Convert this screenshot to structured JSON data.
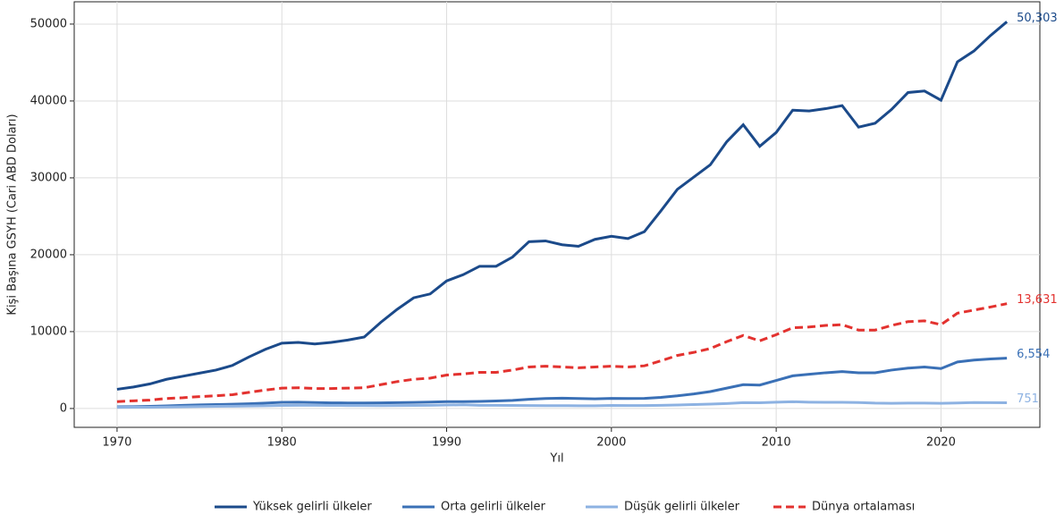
{
  "chart_data": {
    "type": "line",
    "xlabel": "Yıl",
    "ylabel": "Kişi Başına GSYH (Cari ABD Doları)",
    "x": [
      1970,
      1971,
      1972,
      1973,
      1974,
      1975,
      1976,
      1977,
      1978,
      1979,
      1980,
      1981,
      1982,
      1983,
      1984,
      1985,
      1986,
      1987,
      1988,
      1989,
      1990,
      1991,
      1992,
      1993,
      1994,
      1995,
      1996,
      1997,
      1998,
      1999,
      2000,
      2001,
      2002,
      2003,
      2004,
      2005,
      2006,
      2007,
      2008,
      2009,
      2010,
      2011,
      2012,
      2013,
      2014,
      2015,
      2016,
      2017,
      2018,
      2019,
      2020,
      2021,
      2022,
      2023,
      2024
    ],
    "xlim": [
      1967.4,
      2026.0
    ],
    "xticks": [
      1970,
      1980,
      1990,
      2000,
      2010,
      2020
    ],
    "ylim": [
      -2450,
      52900
    ],
    "yticks": [
      0,
      10000,
      20000,
      30000,
      40000,
      50000
    ],
    "grid": true,
    "legend": "bottom",
    "series": [
      {
        "name": "Yüksek gelirli ülkeler",
        "color": "#1b4a8a",
        "dash": false,
        "last_label": "50,303",
        "values": [
          2500,
          2800,
          3200,
          3800,
          4200,
          4600,
          5000,
          5600,
          6700,
          7700,
          8500,
          8600,
          8400,
          8600,
          8900,
          9300,
          11200,
          12900,
          14400,
          14900,
          16600,
          17400,
          18500,
          18500,
          19700,
          21700,
          21800,
          21300,
          21100,
          22000,
          22400,
          22100,
          23000,
          25700,
          28500,
          30100,
          31700,
          34700,
          36900,
          34100,
          35900,
          38800,
          38700,
          39000,
          39400,
          36600,
          37100,
          38900,
          41100,
          41300,
          40100,
          45100,
          46500,
          48500,
          50303
        ]
      },
      {
        "name": "Orta gelirli ülkeler",
        "color": "#3a70b6",
        "dash": false,
        "last_label": "6,554",
        "values": [
          220,
          240,
          280,
          340,
          420,
          470,
          520,
          560,
          620,
          700,
          800,
          820,
          780,
          740,
          720,
          720,
          730,
          760,
          790,
          830,
          900,
          900,
          920,
          980,
          1060,
          1200,
          1300,
          1350,
          1300,
          1250,
          1320,
          1300,
          1320,
          1450,
          1650,
          1900,
          2200,
          2650,
          3100,
          3050,
          3650,
          4250,
          4450,
          4650,
          4800,
          4650,
          4650,
          5000,
          5250,
          5400,
          5200,
          6050,
          6300,
          6450,
          6554
        ]
      },
      {
        "name": "Düşük gelirli ülkeler",
        "color": "#8db2e2",
        "dash": false,
        "last_label": "751",
        "values": [
          150,
          160,
          170,
          200,
          230,
          260,
          280,
          300,
          330,
          360,
          400,
          420,
          410,
          400,
          390,
          380,
          370,
          380,
          400,
          420,
          450,
          480,
          420,
          410,
          400,
          380,
          370,
          370,
          360,
          360,
          400,
          380,
          390,
          420,
          460,
          520,
          580,
          650,
          760,
          750,
          820,
          880,
          820,
          800,
          810,
          780,
          700,
          680,
          700,
          710,
          680,
          720,
          780,
          760,
          751
        ]
      },
      {
        "name": "Dünya ortalaması",
        "color": "#e3322f",
        "dash": true,
        "last_label": "13,631",
        "values": [
          900,
          1000,
          1100,
          1300,
          1400,
          1550,
          1650,
          1800,
          2100,
          2400,
          2650,
          2700,
          2600,
          2600,
          2650,
          2700,
          3100,
          3500,
          3800,
          3950,
          4350,
          4500,
          4700,
          4700,
          5000,
          5400,
          5500,
          5400,
          5300,
          5400,
          5500,
          5400,
          5550,
          6200,
          6900,
          7300,
          7800,
          8700,
          9500,
          8800,
          9600,
          10500,
          10600,
          10800,
          10900,
          10200,
          10200,
          10800,
          11300,
          11400,
          10900,
          12400,
          12800,
          13200,
          13631
        ]
      }
    ]
  }
}
